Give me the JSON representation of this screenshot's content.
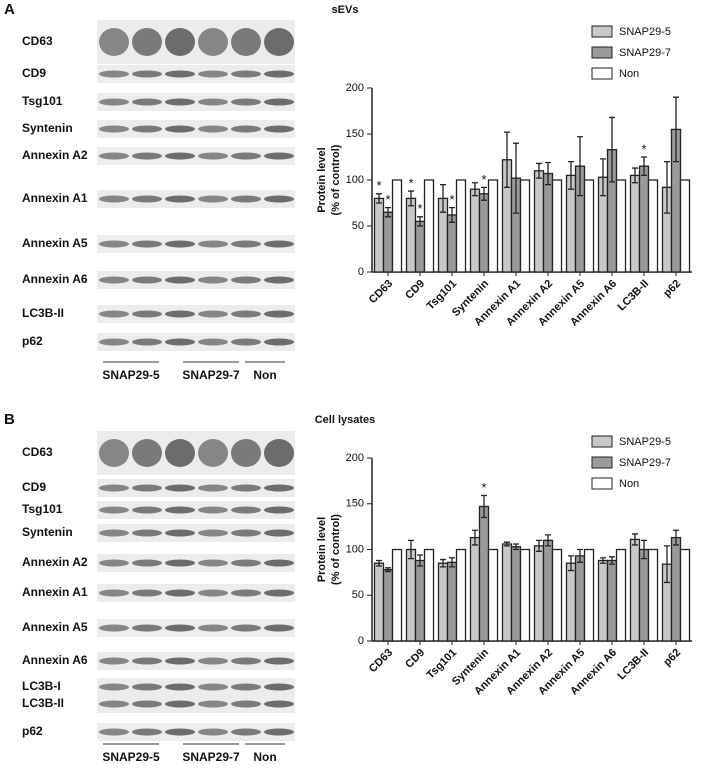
{
  "panels": [
    {
      "label": "A",
      "blot_labels": [
        "CD63",
        "CD9",
        "Tsg101",
        "Syntenin",
        "Annexin A2",
        "Annexin A1",
        "Annexin A5",
        "Annexin A6",
        "LC3B-II",
        "p62"
      ],
      "groups": [
        "SNAP29-5",
        "SNAP29-7",
        "Non"
      ]
    },
    {
      "label": "B",
      "blot_labels": [
        "CD63",
        "CD9",
        "Tsg101",
        "Syntenin",
        "Annexin A2",
        "Annexin A1",
        "Annexin A5",
        "Annexin A6",
        "LC3B-I",
        "LC3B-II",
        "p62"
      ],
      "groups": [
        "SNAP29-5",
        "SNAP29-7",
        "Non"
      ]
    }
  ],
  "chart_data": [
    {
      "type": "bar",
      "title": "sEVs",
      "y_label": [
        "Protein level",
        "(% of control)"
      ],
      "categories": [
        "CD63",
        "CD9",
        "Tsg101",
        "Syntenin",
        "Annexin A1",
        "Annexin A2",
        "Annexin A5",
        "Annexin A6",
        "LC3B-II",
        "p62"
      ],
      "series": [
        {
          "name": "SNAP29-5",
          "color": "#c8c8c8",
          "values": [
            80,
            80,
            80,
            90,
            122,
            110,
            105,
            103,
            105,
            92
          ],
          "errors": [
            5,
            8,
            15,
            7,
            30,
            8,
            15,
            20,
            8,
            28
          ],
          "labels": [
            "*",
            "*",
            null,
            null,
            null,
            null,
            null,
            null,
            null,
            null
          ]
        },
        {
          "name": "SNAP29-7",
          "color": "#9a9a9a",
          "values": [
            65,
            55,
            62,
            85,
            102,
            107,
            115,
            133,
            115,
            155
          ],
          "errors": [
            5,
            5,
            8,
            7,
            38,
            12,
            32,
            35,
            10,
            35
          ],
          "labels": [
            "*",
            "*",
            "*",
            "*",
            null,
            null,
            null,
            null,
            "*",
            null
          ]
        },
        {
          "name": "Non",
          "color": "#ffffff",
          "values": [
            100,
            100,
            100,
            100,
            100,
            100,
            100,
            100,
            100,
            100
          ]
        }
      ],
      "ylim": [
        0,
        200
      ],
      "yticks": [
        0,
        50,
        100,
        150,
        200
      ],
      "legend": "top-right"
    },
    {
      "type": "bar",
      "title": "Cell lysates",
      "y_label": [
        "Protein level",
        "(% of control)"
      ],
      "categories": [
        "CD63",
        "CD9",
        "Tsg101",
        "Syntenin",
        "Annexin A1",
        "Annexin A2",
        "Annexin A5",
        "Annexin A6",
        "LC3B-II",
        "p62"
      ],
      "series": [
        {
          "name": "SNAP29-5",
          "color": "#c8c8c8",
          "values": [
            85,
            100,
            85,
            113,
            106,
            104,
            85,
            88,
            111,
            84
          ],
          "errors": [
            3,
            10,
            4,
            8,
            2,
            6,
            8,
            3,
            6,
            20
          ],
          "labels": [
            null,
            null,
            null,
            null,
            null,
            null,
            null,
            null,
            null,
            null
          ]
        },
        {
          "name": "SNAP29-7",
          "color": "#9a9a9a",
          "values": [
            78,
            88,
            86,
            147,
            103,
            110,
            93,
            88,
            100,
            113
          ],
          "errors": [
            2,
            6,
            5,
            12,
            3,
            6,
            7,
            4,
            10,
            8
          ],
          "labels": [
            null,
            null,
            null,
            "*",
            null,
            null,
            null,
            null,
            null,
            null
          ]
        },
        {
          "name": "Non",
          "color": "#ffffff",
          "values": [
            100,
            100,
            100,
            100,
            100,
            100,
            100,
            100,
            100,
            100
          ]
        }
      ],
      "ylim": [
        0,
        200
      ],
      "yticks": [
        0,
        50,
        100,
        150,
        200
      ],
      "legend": "top-right"
    }
  ]
}
